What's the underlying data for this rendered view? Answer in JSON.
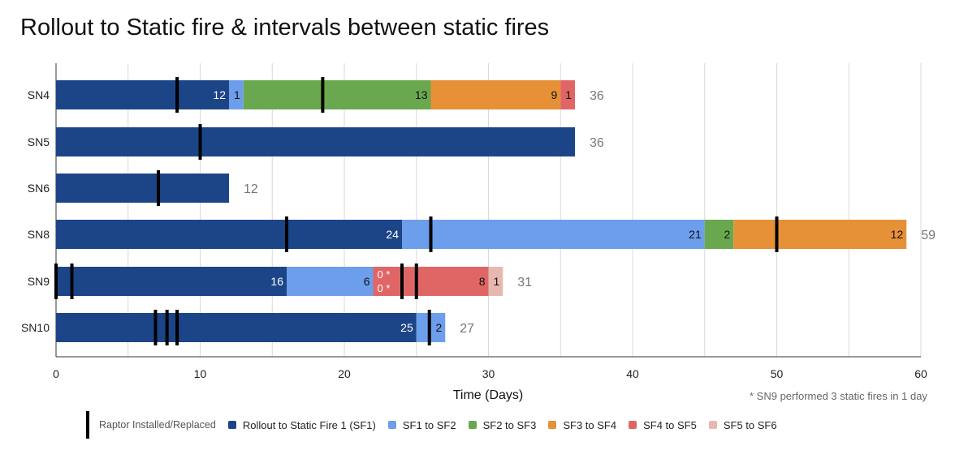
{
  "title": "Rollout to Static fire & intervals between static fires",
  "footnote": "* SN9 performed 3 static fires in 1 day",
  "chart_data": {
    "type": "bar",
    "orientation": "horizontal",
    "stacked": true,
    "title": "Rollout to Static fire & intervals between static fires",
    "xlabel": "Time (Days)",
    "ylabel": "",
    "xlim": [
      0,
      60
    ],
    "xticks": [
      "0",
      "10",
      "20",
      "30",
      "40",
      "50",
      "60"
    ],
    "grid": "vertical",
    "legend_position": "bottom",
    "categories": [
      "SN4",
      "SN5",
      "SN6",
      "SN8",
      "SN9",
      "SN10"
    ],
    "series": [
      {
        "name": "Rollout to Static Fire 1 (SF1)",
        "color": "#1c4587",
        "values": [
          12,
          36,
          12,
          24,
          16,
          25
        ]
      },
      {
        "name": "SF1 to SF2",
        "color": "#6d9eeb",
        "values": [
          1,
          0,
          0,
          21,
          6,
          2
        ]
      },
      {
        "name": "SF2 to SF3",
        "color": "#6aa84f",
        "values": [
          13,
          0,
          0,
          2,
          0,
          0
        ]
      },
      {
        "name": "SF3 to SF4",
        "color": "#e69138",
        "values": [
          9,
          0,
          0,
          12,
          0,
          0
        ]
      },
      {
        "name": "SF4 to SF5",
        "color": "#e06666",
        "values": [
          1,
          0,
          0,
          0,
          8,
          0
        ]
      },
      {
        "name": "SF5 to SF6",
        "color": "#e6b8af",
        "values": [
          0,
          0,
          0,
          0,
          1,
          0
        ]
      }
    ],
    "segment_labels": [
      [
        "12",
        "1",
        "13",
        "9",
        "1",
        ""
      ],
      [
        "",
        "",
        "",
        "",
        "",
        ""
      ],
      [
        "",
        "",
        "",
        "",
        "",
        ""
      ],
      [
        "24",
        "21",
        "2",
        "12",
        "",
        ""
      ],
      [
        "16",
        "6",
        "",
        "",
        "8",
        "1"
      ],
      [
        "25",
        "2",
        "",
        "",
        "",
        ""
      ]
    ],
    "special_labels": [
      {
        "category": "SN9",
        "lines": [
          "0 *",
          "0 *"
        ],
        "x": 22,
        "color": "#e06666"
      }
    ],
    "totals": [
      "36",
      "36",
      "12",
      "59",
      "31",
      "27"
    ],
    "raptor_markers": {
      "name": "Raptor Installed/Replaced",
      "SN4": [
        8.4,
        18.5
      ],
      "SN5": [
        10
      ],
      "SN6": [
        7.1
      ],
      "SN8": [
        16,
        26,
        50
      ],
      "SN9": [
        0,
        1.1,
        24,
        25
      ],
      "SN10": [
        6.9,
        7.7,
        8.4,
        25.9
      ]
    }
  },
  "legend": {
    "marker_label": "Raptor Installed/Replaced",
    "items": [
      {
        "label": "Rollout to Static Fire 1 (SF1)",
        "color": "#1c4587"
      },
      {
        "label": "SF1 to SF2",
        "color": "#6d9eeb"
      },
      {
        "label": "SF2 to SF3",
        "color": "#6aa84f"
      },
      {
        "label": "SF3 to SF4",
        "color": "#e69138"
      },
      {
        "label": "SF4 to SF5",
        "color": "#e06666"
      },
      {
        "label": "SF5 to SF6",
        "color": "#e6b8af"
      }
    ]
  }
}
